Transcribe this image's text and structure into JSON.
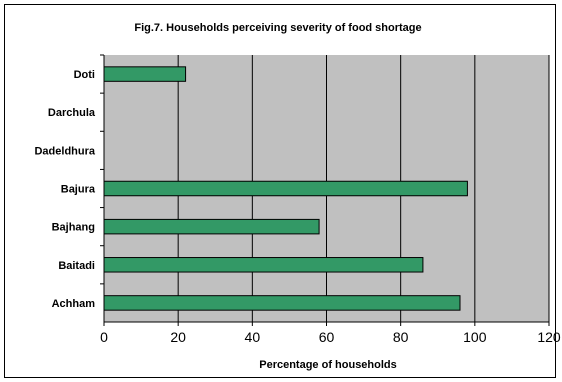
{
  "chart_data": {
    "type": "bar",
    "orientation": "horizontal",
    "title": "Fig.7. Households perceiving severity of food shortage",
    "xlabel": "Percentage of households",
    "ylabel": "",
    "categories": [
      "Doti",
      "Darchula",
      "Dadeldhura",
      "Bajura",
      "Bajhang",
      "Baitadi",
      "Achham"
    ],
    "values": [
      22,
      0,
      0,
      98,
      58,
      86,
      96
    ],
    "xlim": [
      0,
      120
    ],
    "xticks": [
      0,
      20,
      40,
      60,
      80,
      100,
      120
    ],
    "xtick_labels": [
      "0",
      "20",
      "40",
      "60",
      "80",
      "100",
      "120"
    ],
    "grid": "vertical",
    "legend": "none",
    "colors": {
      "bar": "#339966",
      "plot_bg": "#c0c0c0",
      "gridline": "#000000"
    }
  }
}
